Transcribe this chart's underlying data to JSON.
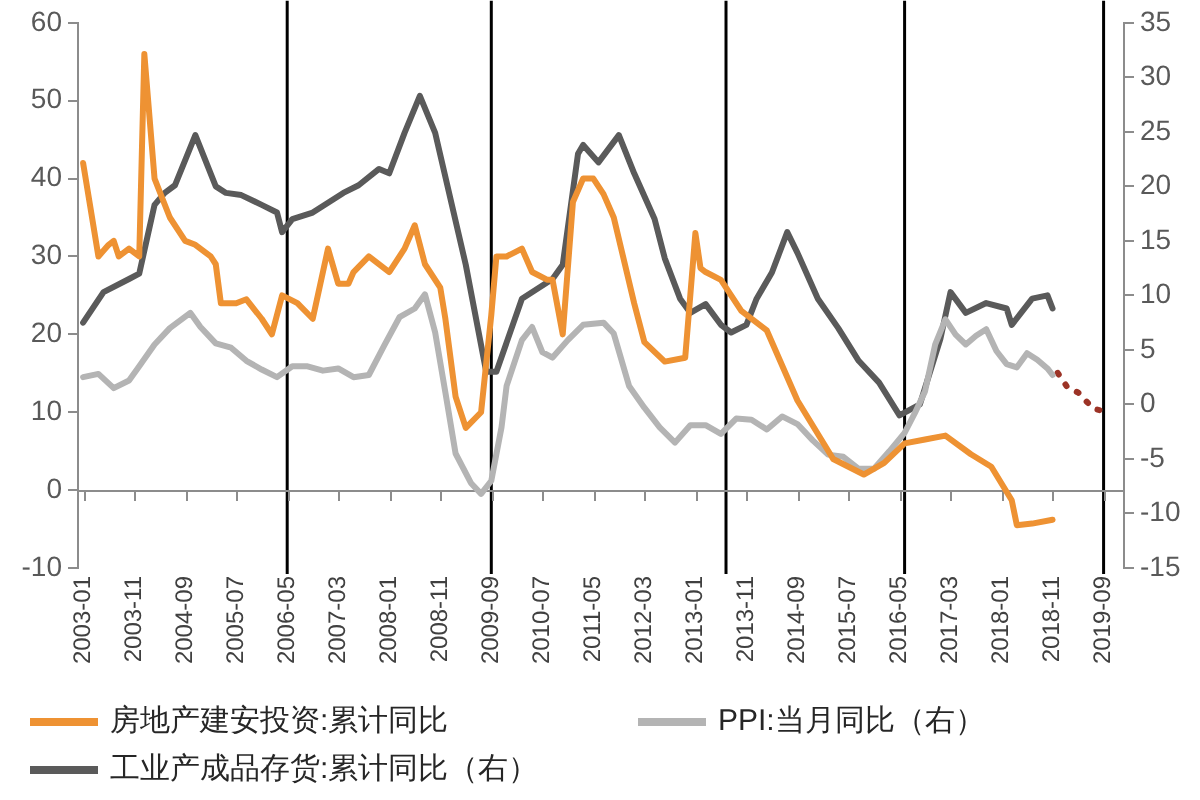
{
  "chart_data": {
    "type": "line",
    "xlim": [
      "2002-12",
      "2020-01"
    ],
    "xticks": [
      "2003-01",
      "2003-11",
      "2004-09",
      "2005-07",
      "2006-05",
      "2007-03",
      "2008-01",
      "2008-11",
      "2009-09",
      "2010-07",
      "2011-05",
      "2012-03",
      "2013-01",
      "2013-11",
      "2014-09",
      "2015-07",
      "2016-05",
      "2017-03",
      "2018-01",
      "2018-11",
      "2019-09"
    ],
    "ylim": [
      -10,
      60
    ],
    "yticks": [
      -10,
      0,
      10,
      20,
      30,
      40,
      50,
      60
    ],
    "y2lim": [
      -15,
      35
    ],
    "y2ticks": [
      -15,
      -10,
      -5,
      0,
      5,
      10,
      15,
      20,
      25,
      30,
      35
    ],
    "legend": "bottom",
    "ref_lines": [
      {
        "axis": "x",
        "value": "2006-05",
        "color": "#000000"
      },
      {
        "axis": "x",
        "value": "2009-09",
        "color": "#000000"
      },
      {
        "axis": "x",
        "value": "2013-07",
        "color": "#000000"
      },
      {
        "axis": "x",
        "value": "2016-06",
        "color": "#000000"
      },
      {
        "axis": "x",
        "value": "2019-09",
        "color": "#000000"
      }
    ],
    "series": [
      {
        "name": "房地产建安投资:累计同比",
        "color": "#ee9233",
        "x": [
          "2003-01",
          "2003-03",
          "2003-04",
          "2003-06",
          "2003-07",
          "2003-08",
          "2003-10",
          "2003-12",
          "2004-01",
          "2004-03",
          "2004-06",
          "2004-09",
          "2004-11",
          "2005-02",
          "2005-03",
          "2005-04",
          "2005-07",
          "2005-09",
          "2005-12",
          "2006-02",
          "2006-04",
          "2006-07",
          "2006-10",
          "2007-01",
          "2007-03",
          "2007-05",
          "2007-06",
          "2007-09",
          "2008-01",
          "2008-04",
          "2008-06",
          "2008-08",
          "2008-11",
          "2008-12",
          "2009-02",
          "2009-04",
          "2009-07",
          "2009-09",
          "2009-10",
          "2009-12",
          "2010-03",
          "2010-05",
          "2010-08",
          "2010-09",
          "2010-11",
          "2011-01",
          "2011-03",
          "2011-05",
          "2011-07",
          "2011-09",
          "2012-01",
          "2012-03",
          "2012-07",
          "2012-11",
          "2013-01",
          "2013-02",
          "2013-03",
          "2013-06",
          "2013-10",
          "2014-03",
          "2014-09",
          "2015-04",
          "2015-10",
          "2016-02",
          "2016-06",
          "2016-10",
          "2017-02",
          "2017-07",
          "2017-11",
          "2018-03",
          "2018-04",
          "2018-07",
          "2018-11"
        ],
        "values": [
          42,
          34,
          30,
          31.5,
          32,
          30,
          31,
          30,
          56,
          40,
          35,
          32,
          31.5,
          30,
          29,
          24,
          24,
          24.5,
          22,
          20,
          25,
          24,
          22,
          31,
          26.5,
          26.5,
          28,
          30,
          28,
          31,
          34,
          29,
          26,
          22,
          12,
          8,
          10,
          22.5,
          30,
          30,
          31,
          28,
          27,
          27,
          20,
          37,
          40,
          40,
          38,
          35,
          24,
          19,
          16.5,
          17,
          33,
          28.5,
          28,
          27,
          23,
          20.5,
          11.5,
          4,
          2,
          3.5,
          6,
          6.5,
          7,
          4.6,
          3,
          -1.3,
          -4.5,
          -4.3,
          -3.8
        ]
      },
      {
        "name": "PPI:当月同比（右）",
        "color": "#b4b4b4",
        "axis": "y2",
        "x": [
          "2003-01",
          "2003-04",
          "2003-07",
          "2003-10",
          "2003-12",
          "2004-03",
          "2004-06",
          "2004-10",
          "2004-12",
          "2005-03",
          "2005-06",
          "2005-09",
          "2005-12",
          "2006-03",
          "2006-06",
          "2006-09",
          "2006-12",
          "2007-03",
          "2007-06",
          "2007-09",
          "2007-12",
          "2008-03",
          "2008-06",
          "2008-08",
          "2008-10",
          "2008-12",
          "2009-02",
          "2009-05",
          "2009-07",
          "2009-09",
          "2009-11",
          "2009-12",
          "2010-03",
          "2010-05",
          "2010-07",
          "2010-09",
          "2010-12",
          "2011-03",
          "2011-07",
          "2011-09",
          "2011-12",
          "2012-03",
          "2012-06",
          "2012-09",
          "2012-12",
          "2013-03",
          "2013-06",
          "2013-09",
          "2013-12",
          "2014-03",
          "2014-06",
          "2014-09",
          "2014-12",
          "2015-03",
          "2015-06",
          "2015-09",
          "2015-12",
          "2016-03",
          "2016-06",
          "2016-08",
          "2016-10",
          "2016-12",
          "2017-02",
          "2017-04",
          "2017-06",
          "2017-08",
          "2017-10",
          "2017-12",
          "2018-02",
          "2018-04",
          "2018-06",
          "2018-08",
          "2018-10",
          "2018-11"
        ],
        "values": [
          2.5,
          2.8,
          1.5,
          2.2,
          3.5,
          5.5,
          7,
          8.4,
          7.1,
          5.6,
          5.2,
          4,
          3.2,
          2.5,
          3.5,
          3.5,
          3.1,
          3.3,
          2.5,
          2.7,
          5.4,
          8,
          8.8,
          10.1,
          6.6,
          1.1,
          -4.5,
          -7.2,
          -8.2,
          -7,
          -2.1,
          1.7,
          5.9,
          7.1,
          4.8,
          4.3,
          5.9,
          7.3,
          7.5,
          6.5,
          1.7,
          -0.3,
          -2.1,
          -3.5,
          -1.9,
          -1.9,
          -2.7,
          -1.3,
          -1.4,
          -2.3,
          -1.1,
          -1.8,
          -3.3,
          -4.6,
          -4.8,
          -5.9,
          -5.9,
          -4.3,
          -2.6,
          -0.8,
          1.2,
          5.5,
          7.8,
          6.4,
          5.5,
          6.3,
          6.9,
          4.9,
          3.7,
          3.4,
          4.7,
          4.1,
          3.3,
          2.7
        ]
      },
      {
        "name": "工业产成品存货:累计同比（右）",
        "color": "#5a5a5a",
        "axis": "y2",
        "x": [
          "2003-01",
          "2003-05",
          "2003-10",
          "2003-12",
          "2004-03",
          "2004-05",
          "2004-07",
          "2004-11",
          "2005-03",
          "2005-05",
          "2005-08",
          "2005-12",
          "2006-03",
          "2006-04",
          "2006-06",
          "2006-10",
          "2007-04",
          "2007-07",
          "2007-11",
          "2008-01",
          "2008-04",
          "2008-07",
          "2008-10",
          "2009-04",
          "2009-08",
          "2009-10",
          "2010-03",
          "2010-09",
          "2010-11",
          "2011-02",
          "2011-03",
          "2011-06",
          "2011-10",
          "2012-01",
          "2012-05",
          "2012-07",
          "2012-10",
          "2012-12",
          "2013-03",
          "2013-06",
          "2013-08",
          "2013-11",
          "2014-01",
          "2014-04",
          "2014-07",
          "2014-09",
          "2015-01",
          "2015-05",
          "2015-09",
          "2016-01",
          "2016-05",
          "2016-09",
          "2017-01",
          "2017-03",
          "2017-06",
          "2017-10",
          "2018-02",
          "2018-03",
          "2018-07",
          "2018-10",
          "2018-11"
        ],
        "values": [
          7.5,
          10.3,
          11.5,
          12,
          18.3,
          19.4,
          20.1,
          24.7,
          20,
          19.4,
          19.2,
          18.3,
          17.6,
          15.8,
          17,
          17.6,
          19.4,
          20.1,
          21.6,
          21.2,
          24.9,
          28.3,
          24.9,
          12.8,
          3,
          3,
          9.7,
          11.5,
          12.8,
          23,
          23.8,
          22.2,
          24.7,
          21.2,
          17,
          13.4,
          9.7,
          8.4,
          9.2,
          7.3,
          6.6,
          7.3,
          9.7,
          12.1,
          15.8,
          13.9,
          9.7,
          7,
          4,
          2,
          -1,
          0,
          6,
          10.3,
          8.4,
          9.3,
          8.8,
          7.3,
          9.7,
          10,
          8.8
        ]
      },
      {
        "color": "#9c3326",
        "axis": "y2",
        "line_style": "dotted",
        "x": [
          "2018-12",
          "2019-02",
          "2019-04",
          "2019-07",
          "2019-10"
        ],
        "values": [
          2.9,
          1.5,
          1.1,
          -0.4,
          -0.7
        ]
      }
    ]
  }
}
